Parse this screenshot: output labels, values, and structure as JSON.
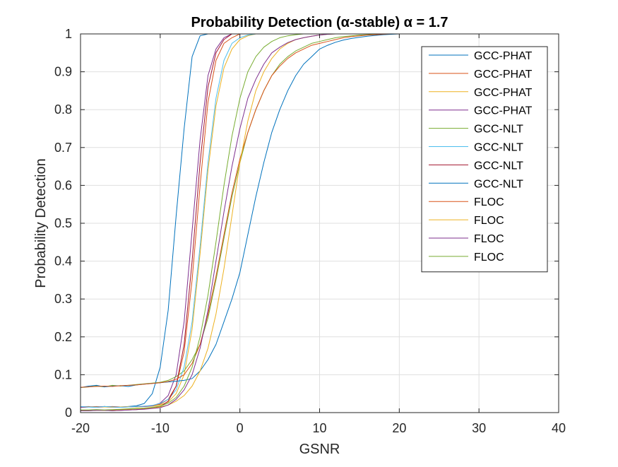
{
  "chart_data": {
    "type": "line",
    "title": "Probability Detection (α-stable) α = 1.7",
    "xlabel": "GSNR",
    "ylabel": "Probability Detection",
    "xlim": [
      -20,
      40
    ],
    "ylim": [
      0,
      1
    ],
    "xticks": [
      "-20",
      "-10",
      "0",
      "10",
      "20",
      "30",
      "40"
    ],
    "yticks": [
      "0",
      "0.1",
      "0.2",
      "0.3",
      "0.4",
      "0.5",
      "0.6",
      "0.7",
      "0.8",
      "0.9",
      "1"
    ],
    "grid": true,
    "legend_position": "top-right",
    "x": [
      -20,
      -19,
      -18,
      -17,
      -16,
      -15,
      -14,
      -13,
      -12,
      -11,
      -10,
      -9,
      -8,
      -7,
      -6,
      -5,
      -4,
      -3,
      -2,
      -1,
      0,
      1,
      2,
      3,
      4,
      5,
      6,
      7,
      8,
      9,
      10,
      11,
      12,
      13,
      14,
      15,
      16,
      17,
      18,
      19,
      20,
      21,
      22,
      23,
      24,
      25,
      26,
      27,
      28,
      29,
      30,
      31,
      32,
      33,
      34,
      35,
      36,
      37,
      38,
      39,
      40
    ],
    "series": [
      {
        "name": "GCC-PHAT",
        "color": "#0072BD",
        "values": [
          0.014,
          0.015,
          0.014,
          0.016,
          0.015,
          0.014,
          0.016,
          0.018,
          0.024,
          0.05,
          0.12,
          0.27,
          0.52,
          0.75,
          0.94,
          0.995,
          1,
          1,
          1,
          1,
          1,
          1,
          1,
          1,
          1,
          1,
          1,
          1,
          1,
          1,
          1,
          1,
          1,
          1,
          1,
          1,
          1,
          1,
          1,
          1,
          1,
          1,
          1,
          1,
          1,
          1,
          1,
          1,
          1,
          1,
          1,
          1,
          1,
          1,
          1,
          1,
          1,
          1,
          1,
          1,
          1
        ]
      },
      {
        "name": "GCC-PHAT",
        "color": "#D95319",
        "values": [
          0.015,
          0.016,
          0.014,
          0.015,
          0.016,
          0.015,
          0.015,
          0.016,
          0.017,
          0.018,
          0.022,
          0.035,
          0.07,
          0.16,
          0.35,
          0.6,
          0.82,
          0.93,
          0.975,
          0.99,
          1,
          1,
          1,
          1,
          1,
          1,
          1,
          1,
          1,
          1,
          1,
          1,
          1,
          1,
          1,
          1,
          1,
          1,
          1,
          1,
          1,
          1,
          1,
          1,
          1,
          1,
          1,
          1,
          1,
          1,
          1,
          1,
          1,
          1,
          1,
          1,
          1,
          1,
          1,
          1,
          1
        ]
      },
      {
        "name": "GCC-PHAT",
        "color": "#EDB120",
        "values": [
          0.014,
          0.015,
          0.016,
          0.015,
          0.014,
          0.015,
          0.016,
          0.015,
          0.016,
          0.017,
          0.02,
          0.028,
          0.05,
          0.1,
          0.22,
          0.42,
          0.64,
          0.81,
          0.91,
          0.96,
          0.985,
          0.995,
          1,
          1,
          1,
          1,
          1,
          1,
          1,
          1,
          1,
          1,
          1,
          1,
          1,
          1,
          1,
          1,
          1,
          1,
          1,
          1,
          1,
          1,
          1,
          1,
          1,
          1,
          1,
          1,
          1,
          1,
          1,
          1,
          1,
          1,
          1,
          1,
          1,
          1,
          1
        ]
      },
      {
        "name": "GCC-PHAT",
        "color": "#7E2F8E",
        "values": [
          0.014,
          0.015,
          0.015,
          0.016,
          0.015,
          0.014,
          0.015,
          0.016,
          0.016,
          0.018,
          0.025,
          0.045,
          0.1,
          0.24,
          0.48,
          0.72,
          0.89,
          0.96,
          0.99,
          1,
          1,
          1,
          1,
          1,
          1,
          1,
          1,
          1,
          1,
          1,
          1,
          1,
          1,
          1,
          1,
          1,
          1,
          1,
          1,
          1,
          1,
          1,
          1,
          1,
          1,
          1,
          1,
          1,
          1,
          1,
          1,
          1,
          1,
          1,
          1,
          1,
          1,
          1,
          1,
          1,
          1
        ]
      },
      {
        "name": "GCC-NLT",
        "color": "#77AC30",
        "values": [
          0.066,
          0.068,
          0.07,
          0.068,
          0.072,
          0.07,
          0.072,
          0.074,
          0.076,
          0.078,
          0.08,
          0.085,
          0.095,
          0.11,
          0.14,
          0.18,
          0.25,
          0.35,
          0.46,
          0.57,
          0.66,
          0.74,
          0.8,
          0.85,
          0.89,
          0.92,
          0.94,
          0.955,
          0.965,
          0.975,
          0.98,
          0.985,
          0.99,
          0.993,
          0.995,
          0.997,
          0.998,
          0.999,
          1,
          1,
          1,
          1,
          1,
          1,
          1,
          1,
          1,
          1,
          1,
          1,
          1,
          1,
          1,
          1,
          1,
          1,
          1,
          1,
          1,
          1,
          1
        ]
      },
      {
        "name": "GCC-NLT",
        "color": "#4DBEEE",
        "values": [
          0.016,
          0.015,
          0.014,
          0.016,
          0.015,
          0.014,
          0.015,
          0.016,
          0.017,
          0.019,
          0.024,
          0.035,
          0.06,
          0.12,
          0.24,
          0.44,
          0.66,
          0.83,
          0.93,
          0.975,
          0.99,
          0.997,
          1,
          1,
          1,
          1,
          1,
          1,
          1,
          1,
          1,
          1,
          1,
          1,
          1,
          1,
          1,
          1,
          1,
          1,
          1,
          1,
          1,
          1,
          1,
          1,
          1,
          1,
          1,
          1,
          1,
          1,
          1,
          1,
          1,
          1,
          1,
          1,
          1,
          1,
          1
        ]
      },
      {
        "name": "GCC-NLT",
        "color": "#A2142F",
        "values": [
          0.005,
          0.005,
          0.006,
          0.006,
          0.005,
          0.006,
          0.007,
          0.008,
          0.01,
          0.012,
          0.016,
          0.03,
          0.07,
          0.18,
          0.4,
          0.66,
          0.86,
          0.95,
          0.985,
          1,
          1,
          1,
          1,
          1,
          1,
          1,
          1,
          1,
          1,
          1,
          1,
          1,
          1,
          1,
          1,
          1,
          1,
          1,
          1,
          1,
          1,
          1,
          1,
          1,
          1,
          1,
          1,
          1,
          1,
          1,
          1,
          1,
          1,
          1,
          1,
          1,
          1,
          1,
          1,
          1,
          1
        ]
      },
      {
        "name": "GCC-NLT",
        "color": "#0072BD",
        "values": [
          0.066,
          0.07,
          0.072,
          0.068,
          0.07,
          0.071,
          0.069,
          0.073,
          0.075,
          0.077,
          0.079,
          0.081,
          0.083,
          0.085,
          0.09,
          0.11,
          0.14,
          0.18,
          0.24,
          0.3,
          0.37,
          0.47,
          0.57,
          0.66,
          0.74,
          0.8,
          0.85,
          0.89,
          0.92,
          0.94,
          0.96,
          0.97,
          0.978,
          0.984,
          0.988,
          0.991,
          0.994,
          0.996,
          0.998,
          0.999,
          1,
          1,
          1,
          1,
          1,
          1,
          1,
          1,
          1,
          1,
          1,
          1,
          1,
          1,
          1,
          1,
          1,
          1,
          1,
          1,
          1
        ]
      },
      {
        "name": "FLOC",
        "color": "#D95319",
        "values": [
          0.067,
          0.068,
          0.069,
          0.07,
          0.069,
          0.071,
          0.072,
          0.073,
          0.075,
          0.077,
          0.079,
          0.082,
          0.088,
          0.1,
          0.13,
          0.18,
          0.26,
          0.36,
          0.47,
          0.58,
          0.67,
          0.74,
          0.8,
          0.85,
          0.89,
          0.915,
          0.935,
          0.95,
          0.96,
          0.97,
          0.975,
          0.98,
          0.985,
          0.99,
          0.993,
          0.995,
          0.997,
          0.998,
          0.999,
          1,
          1,
          1,
          1,
          1,
          1,
          1,
          1,
          1,
          1,
          1,
          1,
          1,
          1,
          1,
          1,
          1,
          1,
          1,
          1,
          1,
          1
        ]
      },
      {
        "name": "FLOC",
        "color": "#EDB120",
        "values": [
          0.006,
          0.006,
          0.007,
          0.006,
          0.007,
          0.008,
          0.009,
          0.01,
          0.011,
          0.012,
          0.015,
          0.02,
          0.03,
          0.045,
          0.07,
          0.11,
          0.17,
          0.26,
          0.38,
          0.52,
          0.66,
          0.77,
          0.85,
          0.9,
          0.935,
          0.96,
          0.975,
          0.985,
          0.99,
          0.994,
          0.997,
          0.999,
          1,
          1,
          1,
          1,
          1,
          1,
          1,
          1,
          1,
          1,
          1,
          1,
          1,
          1,
          1,
          1,
          1,
          1,
          1,
          1,
          1,
          1,
          1,
          1,
          1,
          1,
          1,
          1,
          1
        ]
      },
      {
        "name": "FLOC",
        "color": "#7E2F8E",
        "values": [
          0.005,
          0.005,
          0.006,
          0.006,
          0.005,
          0.006,
          0.007,
          0.008,
          0.009,
          0.011,
          0.013,
          0.02,
          0.035,
          0.06,
          0.1,
          0.17,
          0.27,
          0.4,
          0.53,
          0.65,
          0.75,
          0.83,
          0.88,
          0.92,
          0.95,
          0.965,
          0.977,
          0.985,
          0.99,
          0.994,
          0.997,
          0.999,
          1,
          1,
          1,
          1,
          1,
          1,
          1,
          1,
          1,
          1,
          1,
          1,
          1,
          1,
          1,
          1,
          1,
          1,
          1,
          1,
          1,
          1,
          1,
          1,
          1,
          1,
          1,
          1,
          1
        ]
      },
      {
        "name": "FLOC",
        "color": "#77AC30",
        "values": [
          0.007,
          0.007,
          0.008,
          0.007,
          0.008,
          0.009,
          0.01,
          0.011,
          0.012,
          0.014,
          0.017,
          0.025,
          0.04,
          0.07,
          0.12,
          0.2,
          0.31,
          0.45,
          0.6,
          0.73,
          0.83,
          0.9,
          0.94,
          0.965,
          0.98,
          0.99,
          0.995,
          0.998,
          1,
          1,
          1,
          1,
          1,
          1,
          1,
          1,
          1,
          1,
          1,
          1,
          1,
          1,
          1,
          1,
          1,
          1,
          1,
          1,
          1,
          1,
          1,
          1,
          1,
          1,
          1,
          1,
          1,
          1,
          1,
          1,
          1
        ]
      }
    ]
  }
}
